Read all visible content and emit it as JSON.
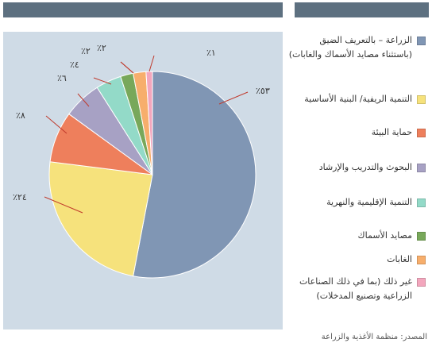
{
  "colors": {
    "panel_bg": "#cfdbe6",
    "top_bar": "#5d7080"
  },
  "chart_data": {
    "type": "pie",
    "title": "",
    "slices": [
      {
        "label": "الزراعة – بالتعريف الضيق\n(باستثناء مصايد الأسماك والغابات)",
        "value": 53,
        "display": "٪٥٣",
        "color": "#8096b4"
      },
      {
        "label": "التنمية الريفية/ البنية الأساسية",
        "value": 24,
        "display": "٪٢٤",
        "color": "#f6e27c"
      },
      {
        "label": "حماية البيئة",
        "value": 8,
        "display": "٪٨",
        "color": "#ee7f5c"
      },
      {
        "label": "البحوث والتدريب والإرشاد",
        "value": 6,
        "display": "٪٦",
        "color": "#a7a1c4"
      },
      {
        "label": "التنمية الإقليمية والنهرية",
        "value": 4,
        "display": "٪٤",
        "color": "#93dac8"
      },
      {
        "label": "مصايد الأسماك",
        "value": 2,
        "display": "٪٢",
        "color": "#78a85a"
      },
      {
        "label": "الغابات",
        "value": 2,
        "display": "٪٢",
        "color": "#f7ae6c"
      },
      {
        "label": "غير ذلك (بما في ذلك الصناعات\nالزراعية وتصنيع المدخلات)",
        "value": 1,
        "display": "٪١",
        "color": "#f3a6bd"
      }
    ],
    "legend_position": "right"
  },
  "source": "المصدر: منظمة الأغذية والزراعة"
}
